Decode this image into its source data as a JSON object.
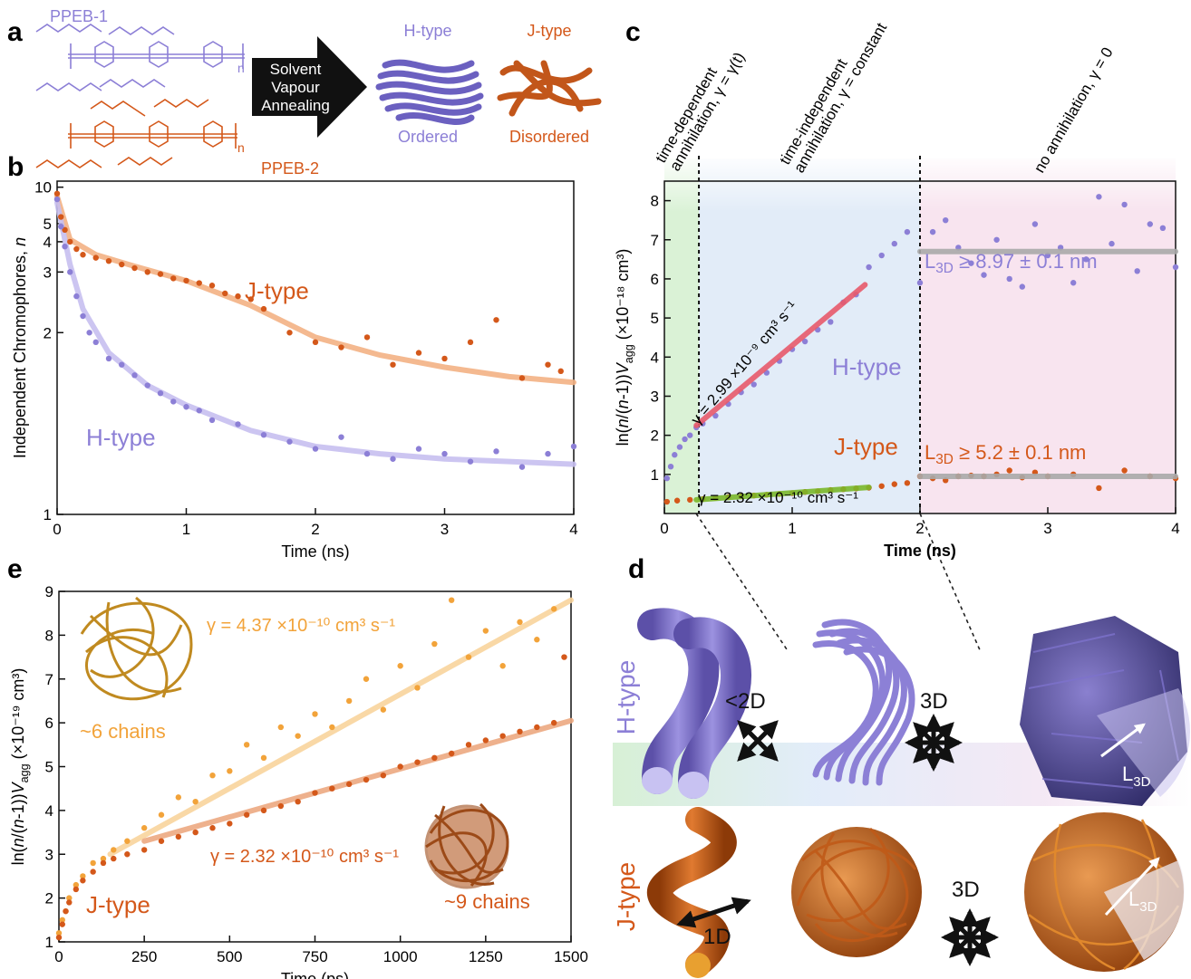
{
  "panel_labels": [
    "a",
    "b",
    "c",
    "d",
    "e"
  ],
  "panel_a": {
    "polymers": [
      {
        "name": "PPEB-1",
        "color": "#8c7fd6",
        "repeat": "n"
      },
      {
        "name": "PPEB-2",
        "color": "#d4581a",
        "repeat": "n"
      }
    ],
    "arrow_text": [
      "Solvent",
      "Vapour",
      "Annealing"
    ],
    "morphologies": [
      {
        "name": "H-type",
        "description": "Ordered",
        "color": "#8c7fd6"
      },
      {
        "name": "J-type",
        "description": "Disordered",
        "color": "#d4581a"
      }
    ]
  },
  "panel_d": {
    "rows": [
      {
        "name": "H-type",
        "color": "#8c7fd6"
      },
      {
        "name": "J-type",
        "color": "#d4581a"
      }
    ],
    "dimensionality": [
      "<2D",
      "3D",
      "1D",
      "3D"
    ],
    "length_label": [
      "L",
      "3D"
    ]
  },
  "chart_data": [
    {
      "type": "scatter",
      "xlabel": "Time (ns)",
      "ylabel": [
        "Independent Chromophores, ",
        "n"
      ],
      "xlim": [
        0,
        4
      ],
      "xticks": [
        0,
        1,
        2,
        3,
        4
      ],
      "ylim": [
        1,
        12
      ],
      "yscale": "reciprocal",
      "yticks": [
        1,
        2,
        3,
        4,
        5,
        10
      ],
      "series": [
        {
          "mode": "line",
          "color": "#f3b184",
          "x": [
            0,
            0.1,
            0.3,
            0.6,
            1,
            1.5,
            2,
            2.5,
            3,
            3.5,
            4
          ],
          "values": [
            8,
            4.1,
            3.5,
            3.15,
            2.8,
            2.35,
            1.95,
            1.78,
            1.68,
            1.61,
            1.57
          ]
        },
        {
          "mode": "line",
          "color": "#c6bff0",
          "x": [
            0,
            0.1,
            0.2,
            0.4,
            0.7,
            1,
            1.5,
            2,
            2.5,
            3,
            3.5,
            4
          ],
          "values": [
            7,
            3.2,
            2.3,
            1.8,
            1.55,
            1.43,
            1.3,
            1.23,
            1.2,
            1.18,
            1.17,
            1.16
          ]
        },
        {
          "mode": "markers",
          "color": "#d4581a",
          "x": [
            0,
            0.03,
            0.06,
            0.1,
            0.15,
            0.2,
            0.3,
            0.4,
            0.5,
            0.6,
            0.7,
            0.8,
            0.9,
            1.0,
            1.1,
            1.2,
            1.3,
            1.4,
            1.5,
            1.6,
            1.8,
            2.0,
            2.2,
            2.4,
            2.6,
            2.8,
            3.0,
            3.2,
            3.4,
            3.6,
            3.8,
            3.9
          ],
          "values": [
            8.5,
            5.5,
            4.6,
            4.0,
            3.7,
            3.5,
            3.4,
            3.3,
            3.2,
            3.1,
            3.0,
            2.95,
            2.85,
            2.8,
            2.75,
            2.7,
            2.55,
            2.5,
            2.45,
            2.3,
            2.0,
            1.9,
            1.85,
            1.95,
            1.7,
            1.8,
            1.75,
            1.9,
            2.15,
            1.6,
            1.7,
            1.65
          ]
        },
        {
          "mode": "markers",
          "color": "#8c7fd6",
          "x": [
            0,
            0.03,
            0.06,
            0.1,
            0.15,
            0.2,
            0.25,
            0.3,
            0.4,
            0.5,
            0.6,
            0.7,
            0.8,
            0.9,
            1.0,
            1.1,
            1.2,
            1.4,
            1.6,
            1.8,
            2.0,
            2.2,
            2.4,
            2.6,
            2.8,
            3.0,
            3.2,
            3.4,
            3.6,
            3.8,
            4.0
          ],
          "values": [
            7.5,
            4.8,
            3.8,
            3.0,
            2.5,
            2.2,
            2.0,
            1.9,
            1.75,
            1.7,
            1.62,
            1.55,
            1.5,
            1.45,
            1.42,
            1.4,
            1.35,
            1.33,
            1.28,
            1.25,
            1.22,
            1.27,
            1.2,
            1.18,
            1.22,
            1.2,
            1.17,
            1.21,
            1.15,
            1.2,
            1.23
          ]
        }
      ],
      "annotations": [
        {
          "text": "J-type",
          "color": "#d4581a"
        },
        {
          "text": "H-type",
          "color": "#8c7fd6"
        }
      ]
    },
    {
      "type": "scatter",
      "xlabel": "Time (ns)",
      "ylabel": [
        "ln(",
        "n",
        "/(",
        "n",
        "-1))",
        "V",
        "agg",
        "  (×10⁻¹⁸ cm³)"
      ],
      "xlim": [
        0,
        4
      ],
      "xticks": [
        0,
        1,
        2,
        3,
        4
      ],
      "ylim": [
        0,
        8.5
      ],
      "yticks": [
        1,
        2,
        3,
        4,
        5,
        6,
        7,
        8
      ],
      "region_boundaries": [
        0.27,
        2
      ],
      "regions": [
        {
          "label": [
            "time-dependent",
            "annihilation, γ = γ(t)"
          ]
        },
        {
          "label": [
            "time-independent",
            "annihilation, γ = constant"
          ]
        },
        {
          "label": [
            "no annihilation, γ = 0"
          ]
        }
      ],
      "series": [
        {
          "mode": "markers",
          "color": "#8c7fd6",
          "x": [
            0.02,
            0.05,
            0.08,
            0.12,
            0.16,
            0.2,
            0.25,
            0.3,
            0.4,
            0.5,
            0.6,
            0.7,
            0.8,
            0.9,
            1.0,
            1.1,
            1.2,
            1.3,
            1.4,
            1.5,
            1.6,
            1.7,
            1.8,
            1.9,
            2.0,
            2.1,
            2.2,
            2.3,
            2.4,
            2.5,
            2.6,
            2.7,
            2.8,
            2.9,
            3.0,
            3.1,
            3.2,
            3.3,
            3.4,
            3.5,
            3.6,
            3.7,
            3.8,
            3.9,
            4.0
          ],
          "values": [
            0.9,
            1.2,
            1.5,
            1.7,
            1.9,
            2.0,
            2.2,
            2.3,
            2.5,
            2.8,
            3.1,
            3.3,
            3.6,
            3.9,
            4.2,
            4.4,
            4.7,
            4.9,
            5.4,
            5.6,
            6.3,
            6.6,
            6.9,
            7.2,
            5.9,
            7.2,
            7.5,
            6.8,
            6.4,
            6.1,
            7.0,
            6.0,
            5.8,
            7.4,
            6.6,
            6.8,
            5.9,
            6.5,
            8.1,
            6.9,
            7.9,
            6.2,
            7.4,
            7.3,
            6.3
          ]
        },
        {
          "mode": "markers",
          "color": "#d4581a",
          "x": [
            0.02,
            0.1,
            0.2,
            0.3,
            0.4,
            0.5,
            0.6,
            0.7,
            0.8,
            0.9,
            1.0,
            1.1,
            1.2,
            1.3,
            1.4,
            1.5,
            1.6,
            1.7,
            1.8,
            1.9,
            2.0,
            2.1,
            2.2,
            2.3,
            2.4,
            2.5,
            2.6,
            2.7,
            2.8,
            2.9,
            3.0,
            3.2,
            3.4,
            3.6,
            3.8,
            4.0
          ],
          "values": [
            0.3,
            0.33,
            0.35,
            0.37,
            0.4,
            0.42,
            0.44,
            0.46,
            0.48,
            0.5,
            0.52,
            0.55,
            0.57,
            0.6,
            0.62,
            0.64,
            0.66,
            0.7,
            0.75,
            0.78,
            0.95,
            0.9,
            0.85,
            0.95,
            0.97,
            0.95,
            1.0,
            1.1,
            0.92,
            1.05,
            0.95,
            1.0,
            0.65,
            1.1,
            0.95,
            0.9
          ]
        },
        {
          "mode": "line",
          "color": "#e85a6a",
          "x": [
            0.25,
            1.57
          ],
          "values": [
            2.25,
            5.85
          ]
        },
        {
          "mode": "line",
          "color": "#7ab82a",
          "x": [
            0.25,
            1.6
          ],
          "values": [
            0.35,
            0.67
          ]
        },
        {
          "mode": "line",
          "color": "#a9a9a9",
          "x": [
            2,
            4
          ],
          "values": [
            6.7,
            6.7
          ]
        },
        {
          "mode": "line",
          "color": "#a9a9a9",
          "x": [
            2,
            4
          ],
          "values": [
            0.95,
            0.95
          ]
        }
      ],
      "annotations": [
        {
          "text": "γ = 2.99 ×10⁻⁹ cm³ s⁻¹",
          "color": "#000000"
        },
        {
          "text": "H-type",
          "color": "#8c7fd6"
        },
        {
          "text": [
            "L",
            "3D",
            " ≥ 8.97 ± 0.1 nm"
          ],
          "color": "#8c7fd6"
        },
        {
          "text": "J-type",
          "color": "#d4581a"
        },
        {
          "text": [
            "L",
            "3D",
            " ≥ 5.2 ± 0.1 nm"
          ],
          "color": "#d4581a"
        },
        {
          "text": "γ = 2.32 ×10⁻¹⁰ cm³ s⁻¹",
          "color": "#000000"
        }
      ]
    },
    {
      "type": "scatter",
      "xlabel": "Time (ps)",
      "ylabel": [
        "ln(",
        "n",
        "/(",
        "n",
        "-1))",
        "V",
        "agg",
        "  (×10⁻¹⁹ cm³)"
      ],
      "xlim": [
        0,
        1500
      ],
      "xticks": [
        0,
        250,
        500,
        750,
        1000,
        1250,
        1500
      ],
      "ylim": [
        1,
        9
      ],
      "yticks": [
        1,
        2,
        3,
        4,
        5,
        6,
        7,
        8,
        9
      ],
      "series": [
        {
          "mode": "line",
          "color": "#f8d49c",
          "x": [
            150,
            1500
          ],
          "values": [
            3.0,
            8.8
          ]
        },
        {
          "mode": "line",
          "color": "#eca981",
          "x": [
            250,
            1500
          ],
          "values": [
            3.3,
            6.05
          ]
        },
        {
          "mode": "markers",
          "color": "#f2a33a",
          "x": [
            0,
            10,
            20,
            30,
            50,
            70,
            100,
            130,
            160,
            200,
            250,
            300,
            350,
            400,
            450,
            500,
            550,
            600,
            650,
            700,
            750,
            800,
            850,
            900,
            950,
            1000,
            1050,
            1100,
            1150,
            1200,
            1250,
            1300,
            1350,
            1400,
            1450
          ],
          "values": [
            1.2,
            1.5,
            1.7,
            2.0,
            2.3,
            2.5,
            2.8,
            2.9,
            3.1,
            3.3,
            3.6,
            3.9,
            4.3,
            4.2,
            4.8,
            4.9,
            5.5,
            5.2,
            5.9,
            5.7,
            6.2,
            5.9,
            6.5,
            7.0,
            6.3,
            7.3,
            6.8,
            7.8,
            8.8,
            7.5,
            8.1,
            7.3,
            8.3,
            7.9,
            8.6
          ]
        },
        {
          "mode": "markers",
          "color": "#d4581a",
          "x": [
            0,
            10,
            20,
            30,
            50,
            70,
            100,
            130,
            160,
            200,
            250,
            300,
            350,
            400,
            450,
            500,
            550,
            600,
            650,
            700,
            750,
            800,
            850,
            900,
            950,
            1000,
            1050,
            1100,
            1150,
            1200,
            1250,
            1300,
            1350,
            1400,
            1450,
            1480
          ],
          "values": [
            1.1,
            1.4,
            1.7,
            1.9,
            2.2,
            2.4,
            2.6,
            2.8,
            2.9,
            3.0,
            3.1,
            3.3,
            3.4,
            3.5,
            3.6,
            3.7,
            3.9,
            4.0,
            4.1,
            4.2,
            4.4,
            4.5,
            4.6,
            4.7,
            4.8,
            5.0,
            5.1,
            5.2,
            5.3,
            5.5,
            5.6,
            5.7,
            5.8,
            5.9,
            6.0,
            7.5
          ]
        }
      ],
      "annotations": [
        {
          "text": "γ = 4.37 ×10⁻¹⁰ cm³ s⁻¹",
          "color": "#f2a33a"
        },
        {
          "text": "~6 chains",
          "color": "#f2a33a"
        },
        {
          "text": "γ = 2.32 ×10⁻¹⁰ cm³ s⁻¹",
          "color": "#d4581a"
        },
        {
          "text": "~9 chains",
          "color": "#d4581a"
        },
        {
          "text": "J-type",
          "color": "#d4581a"
        }
      ]
    }
  ]
}
